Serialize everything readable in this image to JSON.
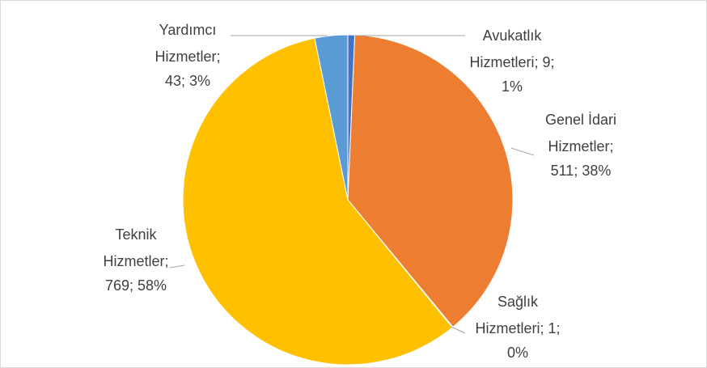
{
  "chart_data": {
    "type": "pie",
    "values": [
      9,
      511,
      1,
      769,
      43
    ],
    "colors": [
      "#4472c4",
      "#ed7d31",
      "#a5a5a5",
      "#ffc000",
      "#5b9bd5"
    ],
    "data_labels": [
      [
        "Avukatlık",
        "Hizmetleri; 9;",
        "1%"
      ],
      [
        "Genel İdari",
        "Hizmetler;",
        "511; 38%"
      ],
      [
        "Sağlık",
        "Hizmetleri; 1;",
        "0%"
      ],
      [
        "Teknik",
        "Hizmetler;",
        "769; 58%"
      ],
      [
        "Yardımcı",
        "Hizmetler;",
        "43; 3%"
      ]
    ]
  }
}
